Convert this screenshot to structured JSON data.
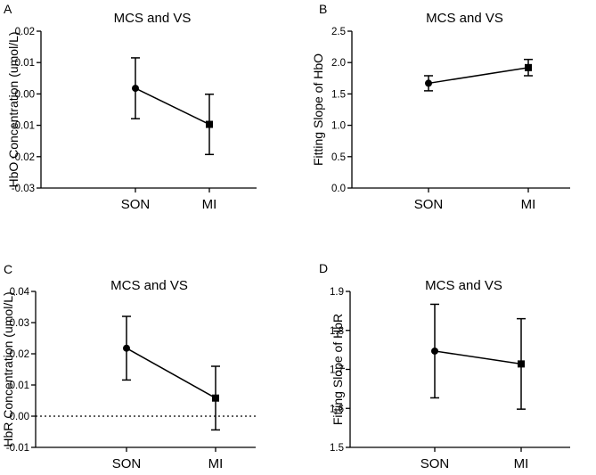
{
  "chart_data": [
    {
      "panel": "A",
      "type": "line",
      "title": "MCS and VS",
      "xlabel": "",
      "ylabel": "HbO Concentration (umol/L)",
      "categories": [
        "SON",
        "MI"
      ],
      "values": [
        0.0018,
        -0.0097
      ],
      "errors": [
        0.0097,
        0.0096
      ],
      "markers": [
        "circle",
        "square"
      ],
      "ylim": [
        -0.03,
        0.02
      ],
      "yticks": [
        -0.03,
        -0.02,
        -0.01,
        0.0,
        0.01,
        0.02
      ],
      "ytick_labels": [
        "-0.03",
        "-0.02",
        "-0.01",
        "0.00",
        "0.01",
        "0.02"
      ],
      "zero_line": false
    },
    {
      "panel": "B",
      "type": "line",
      "title": "MCS and VS",
      "xlabel": "",
      "ylabel": "Fitting Slope of HbO",
      "categories": [
        "SON",
        "MI"
      ],
      "values": [
        1.67,
        1.92
      ],
      "errors": [
        0.12,
        0.13
      ],
      "markers": [
        "circle",
        "square"
      ],
      "ylim": [
        0.0,
        2.5
      ],
      "yticks": [
        0.0,
        0.5,
        1.0,
        1.5,
        2.0,
        2.5
      ],
      "ytick_labels": [
        "0.0",
        "0.5",
        "1.0",
        "1.5",
        "2.0",
        "2.5"
      ],
      "zero_line": false
    },
    {
      "panel": "C",
      "type": "line",
      "title": "MCS and VS",
      "xlabel": "",
      "ylabel": "HbR Concentration (umol/L)",
      "categories": [
        "SON",
        "MI"
      ],
      "values": [
        0.0218,
        0.0058
      ],
      "errors": [
        0.0102,
        0.0102
      ],
      "markers": [
        "circle",
        "square"
      ],
      "ylim": [
        -0.01,
        0.04
      ],
      "yticks": [
        -0.01,
        0.0,
        0.01,
        0.02,
        0.03,
        0.04
      ],
      "ytick_labels": [
        "-0.01",
        "0.00",
        "0.01",
        "0.02",
        "0.03",
        "0.04"
      ],
      "zero_line": true
    },
    {
      "panel": "D",
      "type": "line",
      "title": "MCS and VS",
      "xlabel": "",
      "ylabel": "Fitting Slope of HbR",
      "categories": [
        "SON",
        "MI"
      ],
      "values": [
        1.747,
        1.714
      ],
      "errors": [
        0.12,
        0.116
      ],
      "markers": [
        "circle",
        "square"
      ],
      "ylim": [
        1.5,
        1.9
      ],
      "yticks": [
        1.5,
        1.6,
        1.7,
        1.8,
        1.9
      ],
      "ytick_labels": [
        "1.5",
        "1.6",
        "1.7",
        "1.8",
        "1.9"
      ],
      "zero_line": false
    }
  ]
}
